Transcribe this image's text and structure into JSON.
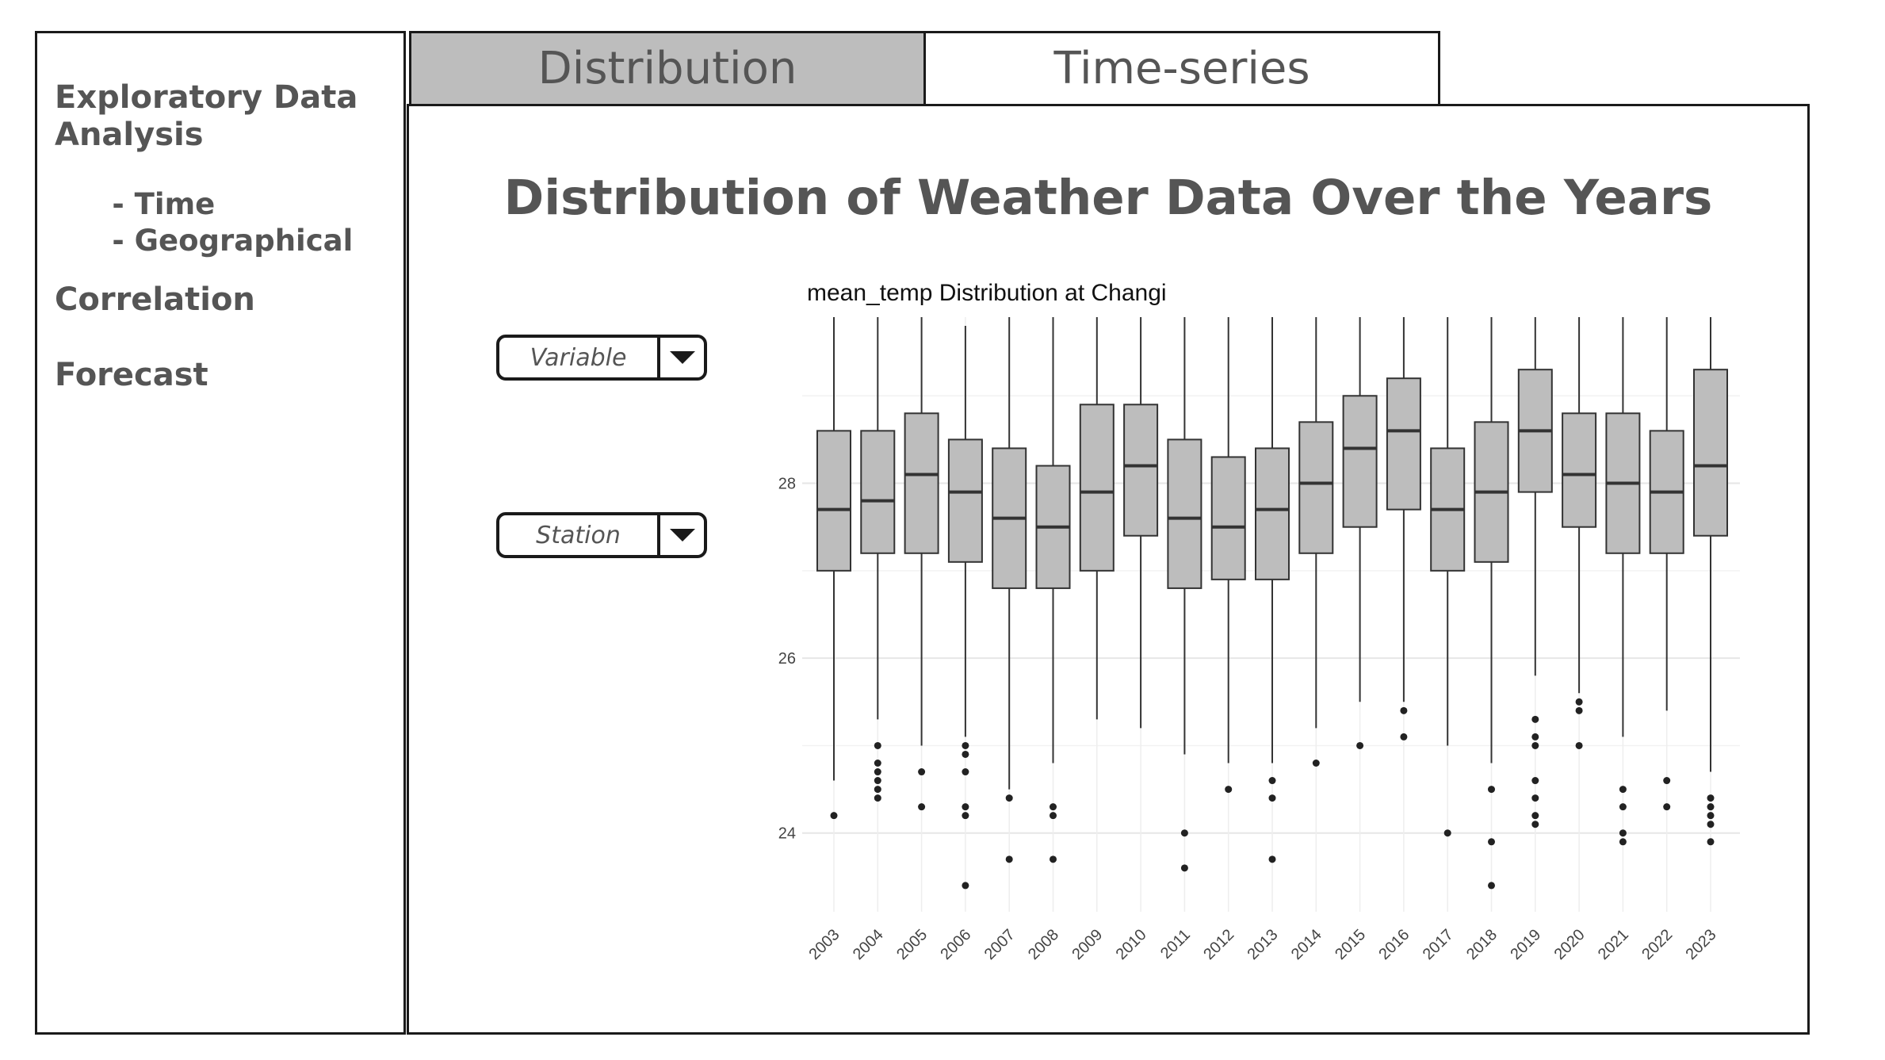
{
  "sidebar": {
    "sections": [
      {
        "label": "Exploratory Data\nAnalysis",
        "children": [
          " - Time",
          " - Geographical"
        ]
      },
      {
        "label": "Correlation",
        "children": []
      },
      {
        "label": "Forecast",
        "children": []
      }
    ]
  },
  "tabs": [
    {
      "label": "Distribution",
      "active": true
    },
    {
      "label": "Time-series",
      "active": false
    }
  ],
  "main": {
    "title": "Distribution of Weather Data Over the Years",
    "variable_dropdown": {
      "placeholder": "Variable"
    },
    "station_dropdown": {
      "placeholder": "Station"
    }
  },
  "colors": {
    "box_fill": "#bdbdbd",
    "active_tab": "#bdbdbd",
    "text": "#555555",
    "border": "#1a1a1a"
  },
  "chart_data": {
    "type": "boxplot",
    "title": "mean_temp Distribution at Changi",
    "xlabel": "",
    "ylabel": "",
    "ylim": [
      23.1,
      29.9
    ],
    "yticks": [
      24,
      26,
      28
    ],
    "grid": true,
    "categories": [
      "2003",
      "2004",
      "2005",
      "2006",
      "2007",
      "2008",
      "2009",
      "2010",
      "2011",
      "2012",
      "2013",
      "2014",
      "2015",
      "2016",
      "2017",
      "2018",
      "2019",
      "2020",
      "2021",
      "2022",
      "2023"
    ],
    "boxes": [
      {
        "q1": 27.0,
        "median": 27.7,
        "q3": 28.6,
        "lower": 24.6,
        "upper": 29.9,
        "outliers": [
          24.2
        ]
      },
      {
        "q1": 27.2,
        "median": 27.8,
        "q3": 28.6,
        "lower": 25.3,
        "upper": 29.9,
        "outliers": [
          25.0,
          24.8,
          24.7,
          24.6,
          24.5,
          24.4
        ]
      },
      {
        "q1": 27.2,
        "median": 28.1,
        "q3": 28.8,
        "lower": 25.0,
        "upper": 29.9,
        "outliers": [
          24.7,
          24.3
        ]
      },
      {
        "q1": 27.1,
        "median": 27.9,
        "q3": 28.5,
        "lower": 25.1,
        "upper": 29.8,
        "outliers": [
          25.0,
          24.9,
          24.7,
          24.3,
          24.2,
          23.4
        ]
      },
      {
        "q1": 26.8,
        "median": 27.6,
        "q3": 28.4,
        "lower": 24.5,
        "upper": 29.9,
        "outliers": [
          24.4,
          23.7
        ]
      },
      {
        "q1": 26.8,
        "median": 27.5,
        "q3": 28.2,
        "lower": 24.8,
        "upper": 29.9,
        "outliers": [
          24.3,
          24.2,
          23.7
        ]
      },
      {
        "q1": 27.0,
        "median": 27.9,
        "q3": 28.9,
        "lower": 25.3,
        "upper": 29.9,
        "outliers": []
      },
      {
        "q1": 27.4,
        "median": 28.2,
        "q3": 28.9,
        "lower": 25.2,
        "upper": 29.9,
        "outliers": []
      },
      {
        "q1": 26.8,
        "median": 27.6,
        "q3": 28.5,
        "lower": 24.9,
        "upper": 29.9,
        "outliers": [
          24.0,
          23.6
        ]
      },
      {
        "q1": 26.9,
        "median": 27.5,
        "q3": 28.3,
        "lower": 24.8,
        "upper": 29.9,
        "outliers": [
          24.5
        ]
      },
      {
        "q1": 26.9,
        "median": 27.7,
        "q3": 28.4,
        "lower": 24.8,
        "upper": 29.9,
        "outliers": [
          24.6,
          24.4,
          23.7
        ]
      },
      {
        "q1": 27.2,
        "median": 28.0,
        "q3": 28.7,
        "lower": 25.2,
        "upper": 29.9,
        "outliers": [
          24.8
        ]
      },
      {
        "q1": 27.5,
        "median": 28.4,
        "q3": 29.0,
        "lower": 25.5,
        "upper": 29.9,
        "outliers": [
          25.0
        ]
      },
      {
        "q1": 27.7,
        "median": 28.6,
        "q3": 29.2,
        "lower": 25.5,
        "upper": 29.9,
        "outliers": [
          25.4,
          25.1
        ]
      },
      {
        "q1": 27.0,
        "median": 27.7,
        "q3": 28.4,
        "lower": 25.0,
        "upper": 29.9,
        "outliers": [
          24.0
        ]
      },
      {
        "q1": 27.1,
        "median": 27.9,
        "q3": 28.7,
        "lower": 24.8,
        "upper": 29.9,
        "outliers": [
          24.5,
          23.9,
          23.4
        ]
      },
      {
        "q1": 27.9,
        "median": 28.6,
        "q3": 29.3,
        "lower": 25.8,
        "upper": 29.9,
        "outliers": [
          25.3,
          25.1,
          25.0,
          24.6,
          24.4,
          24.2,
          24.1
        ]
      },
      {
        "q1": 27.5,
        "median": 28.1,
        "q3": 28.8,
        "lower": 25.6,
        "upper": 29.9,
        "outliers": [
          25.5,
          25.4,
          25.0
        ]
      },
      {
        "q1": 27.2,
        "median": 28.0,
        "q3": 28.8,
        "lower": 25.1,
        "upper": 29.9,
        "outliers": [
          24.5,
          24.3,
          24.0,
          23.9
        ]
      },
      {
        "q1": 27.2,
        "median": 27.9,
        "q3": 28.6,
        "lower": 25.4,
        "upper": 29.9,
        "outliers": [
          24.6,
          24.3
        ]
      },
      {
        "q1": 27.4,
        "median": 28.2,
        "q3": 29.3,
        "lower": 24.7,
        "upper": 29.9,
        "outliers": [
          24.4,
          24.3,
          24.2,
          24.1,
          23.9
        ]
      }
    ]
  }
}
